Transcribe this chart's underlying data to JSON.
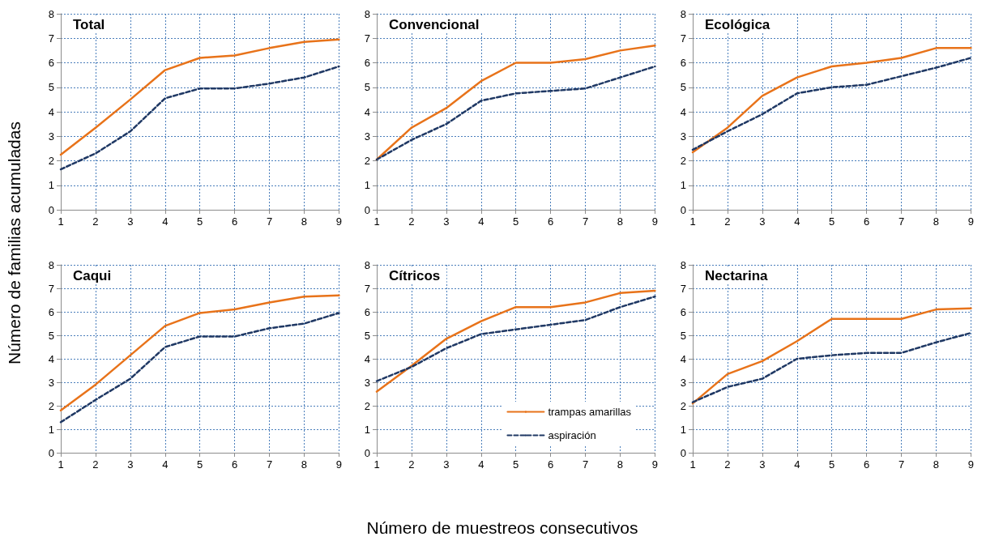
{
  "chart_data": [
    {
      "type": "line",
      "title": "Total",
      "ylabel": "Número de familias acumuladas",
      "x": [
        1,
        2,
        3,
        4,
        5,
        6,
        7,
        8,
        9
      ],
      "xlim": [
        1,
        9
      ],
      "xticks": [
        1,
        2,
        3,
        4,
        5,
        6,
        7,
        8,
        9
      ],
      "ylim": [
        0,
        8
      ],
      "yticks": [
        0,
        1,
        2,
        3,
        4,
        5,
        6,
        7,
        8
      ],
      "grid": true,
      "marker": "none",
      "series": [
        {
          "color": "#e8731a",
          "line_style": "solid",
          "values": [
            2.25,
            3.35,
            4.5,
            5.7,
            6.2,
            6.3,
            6.6,
            6.85,
            6.95
          ]
        },
        {
          "color": "#1f3864",
          "line_style": "dashed",
          "values": [
            1.65,
            2.3,
            3.2,
            4.55,
            4.95,
            4.95,
            5.15,
            5.4,
            5.85
          ]
        }
      ]
    },
    {
      "type": "line",
      "title": "Convencional",
      "x": [
        1,
        2,
        3,
        4,
        5,
        6,
        7,
        8,
        9
      ],
      "xlim": [
        1,
        9
      ],
      "xticks": [
        1,
        2,
        3,
        4,
        5,
        6,
        7,
        8,
        9
      ],
      "ylim": [
        0,
        8
      ],
      "yticks": [
        0,
        1,
        2,
        3,
        4,
        5,
        6,
        7,
        8
      ],
      "grid": true,
      "marker": "none",
      "series": [
        {
          "color": "#e8731a",
          "line_style": "solid",
          "values": [
            2.05,
            3.35,
            4.15,
            5.25,
            6.0,
            6.0,
            6.15,
            6.5,
            6.7
          ]
        },
        {
          "color": "#1f3864",
          "line_style": "dashed",
          "values": [
            2.05,
            2.85,
            3.5,
            4.45,
            4.75,
            4.85,
            4.95,
            5.4,
            5.85
          ]
        }
      ]
    },
    {
      "type": "line",
      "title": "Ecológica",
      "x": [
        1,
        2,
        3,
        4,
        5,
        6,
        7,
        8,
        9
      ],
      "xlim": [
        1,
        9
      ],
      "xticks": [
        1,
        2,
        3,
        4,
        5,
        6,
        7,
        8,
        9
      ],
      "ylim": [
        0,
        8
      ],
      "yticks": [
        0,
        1,
        2,
        3,
        4,
        5,
        6,
        7,
        8
      ],
      "grid": true,
      "marker": "none",
      "series": [
        {
          "color": "#e8731a",
          "line_style": "solid",
          "values": [
            2.35,
            3.35,
            4.65,
            5.4,
            5.85,
            6.0,
            6.2,
            6.6,
            6.6
          ]
        },
        {
          "color": "#1f3864",
          "line_style": "dashed",
          "values": [
            2.45,
            3.2,
            3.9,
            4.75,
            5.0,
            5.1,
            5.45,
            5.8,
            6.2
          ]
        }
      ]
    },
    {
      "type": "line",
      "title": "Caqui",
      "x": [
        1,
        2,
        3,
        4,
        5,
        6,
        7,
        8,
        9
      ],
      "xlim": [
        1,
        9
      ],
      "xticks": [
        1,
        2,
        3,
        4,
        5,
        6,
        7,
        8,
        9
      ],
      "ylim": [
        0,
        8
      ],
      "yticks": [
        0,
        1,
        2,
        3,
        4,
        5,
        6,
        7,
        8
      ],
      "grid": true,
      "marker": "none",
      "series": [
        {
          "color": "#e8731a",
          "line_style": "solid",
          "values": [
            1.8,
            2.9,
            4.15,
            5.4,
            5.95,
            6.1,
            6.4,
            6.65,
            6.7
          ]
        },
        {
          "color": "#1f3864",
          "line_style": "dashed",
          "values": [
            1.3,
            2.25,
            3.15,
            4.5,
            4.95,
            4.95,
            5.3,
            5.5,
            5.95
          ]
        }
      ]
    },
    {
      "type": "line",
      "title": "Cítricos",
      "xlabel": "Número de muestreos consecutivos",
      "x": [
        1,
        2,
        3,
        4,
        5,
        6,
        7,
        8,
        9
      ],
      "xlim": [
        1,
        9
      ],
      "xticks": [
        1,
        2,
        3,
        4,
        5,
        6,
        7,
        8,
        9
      ],
      "ylim": [
        0,
        8
      ],
      "yticks": [
        0,
        1,
        2,
        3,
        4,
        5,
        6,
        7,
        8
      ],
      "grid": true,
      "marker": "none",
      "legend": "bottom right",
      "series": [
        {
          "name": "trampas amarillas",
          "color": "#e8731a",
          "line_style": "solid",
          "values": [
            2.6,
            3.7,
            4.85,
            5.6,
            6.2,
            6.2,
            6.4,
            6.8,
            6.9
          ]
        },
        {
          "name": "aspiración",
          "color": "#1f3864",
          "line_style": "dashed",
          "values": [
            3.05,
            3.65,
            4.45,
            5.05,
            5.25,
            5.45,
            5.65,
            6.2,
            6.65
          ]
        }
      ]
    },
    {
      "type": "line",
      "title": "Nectarina",
      "x": [
        1,
        2,
        3,
        4,
        5,
        6,
        7,
        8,
        9
      ],
      "xlim": [
        1,
        9
      ],
      "xticks": [
        1,
        2,
        3,
        4,
        5,
        6,
        7,
        8,
        9
      ],
      "ylim": [
        0,
        8
      ],
      "yticks": [
        0,
        1,
        2,
        3,
        4,
        5,
        6,
        7,
        8
      ],
      "grid": true,
      "marker": "none",
      "series": [
        {
          "color": "#e8731a",
          "line_style": "solid",
          "values": [
            2.1,
            3.35,
            3.9,
            4.75,
            5.7,
            5.7,
            5.7,
            6.1,
            6.15
          ]
        },
        {
          "color": "#1f3864",
          "line_style": "dashed",
          "values": [
            2.15,
            2.8,
            3.15,
            4.0,
            4.15,
            4.25,
            4.25,
            4.7,
            5.1
          ]
        }
      ]
    }
  ]
}
